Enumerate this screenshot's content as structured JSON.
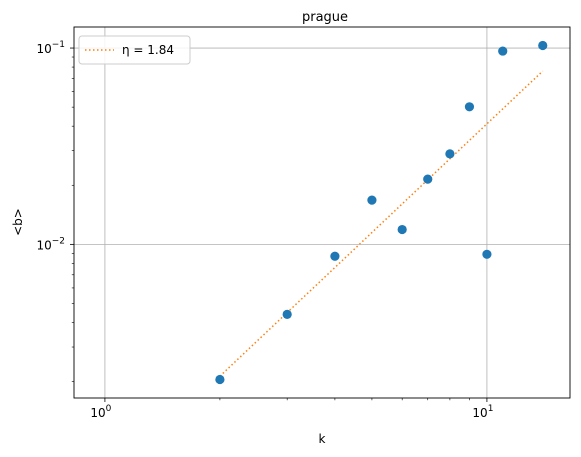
{
  "chart_data": {
    "type": "scatter",
    "title": "prague",
    "xlabel": "k",
    "ylabel": "<b>",
    "xscale": "log",
    "yscale": "log",
    "xlim": [
      0.83,
      16.5
    ],
    "ylim": [
      0.00165,
      0.128
    ],
    "grid": true,
    "legend_position": "top-left",
    "x_ticks": [
      {
        "value": 1,
        "mantissa": "10",
        "exp": "0"
      },
      {
        "value": 10,
        "mantissa": "10",
        "exp": "1"
      }
    ],
    "y_ticks": [
      {
        "value": 0.01,
        "mantissa": "10",
        "exp": "−2"
      },
      {
        "value": 0.1,
        "mantissa": "10",
        "exp": "−1"
      }
    ],
    "series": [
      {
        "type": "scatter",
        "color": "#1f77b4",
        "x": [
          2,
          3,
          4,
          5,
          6,
          7,
          8,
          9,
          10,
          11,
          14
        ],
        "y": [
          0.00205,
          0.0044,
          0.0087,
          0.0168,
          0.0119,
          0.0215,
          0.0289,
          0.0502,
          0.0089,
          0.0965,
          0.103
        ]
      },
      {
        "type": "line",
        "name": "η = 1.84",
        "color": "#ff7f0e",
        "style": "dotted",
        "x": [
          2,
          14
        ],
        "y": [
          0.00213,
          0.0763
        ]
      }
    ]
  }
}
